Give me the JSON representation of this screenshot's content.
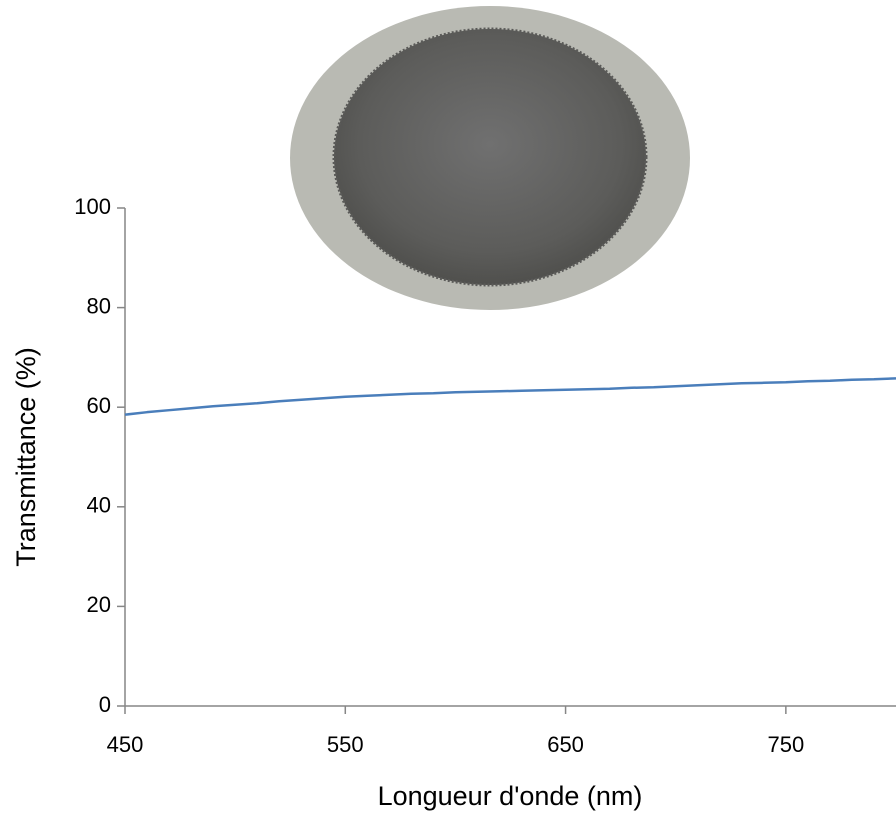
{
  "chart_data": {
    "type": "line",
    "x_label": "Longueur d'onde (nm)",
    "y_label": "Transmittance (%)",
    "x": [
      450,
      460,
      470,
      480,
      490,
      500,
      510,
      520,
      530,
      540,
      550,
      560,
      570,
      580,
      590,
      600,
      610,
      620,
      630,
      640,
      650,
      660,
      670,
      680,
      690,
      700,
      710,
      720,
      730,
      740,
      750,
      760,
      770,
      780,
      790,
      800
    ],
    "series": [
      {
        "color": "#4a7ebb",
        "values": [
          58.5,
          59,
          59.4,
          59.8,
          60.2,
          60.5,
          60.8,
          61.2,
          61.5,
          61.8,
          62.1,
          62.3,
          62.5,
          62.7,
          62.8,
          63,
          63.1,
          63.2,
          63.3,
          63.4,
          63.5,
          63.6,
          63.7,
          63.9,
          64,
          64.2,
          64.4,
          64.6,
          64.8,
          64.9,
          65,
          65.2,
          65.3,
          65.5,
          65.6,
          65.8
        ]
      }
    ],
    "xlim": [
      450,
      800
    ],
    "xticks": [
      450,
      550,
      650,
      750
    ],
    "ylim": [
      0,
      100
    ],
    "yticks": [
      0,
      20,
      40,
      60,
      80,
      100
    ],
    "grid": false
  }
}
